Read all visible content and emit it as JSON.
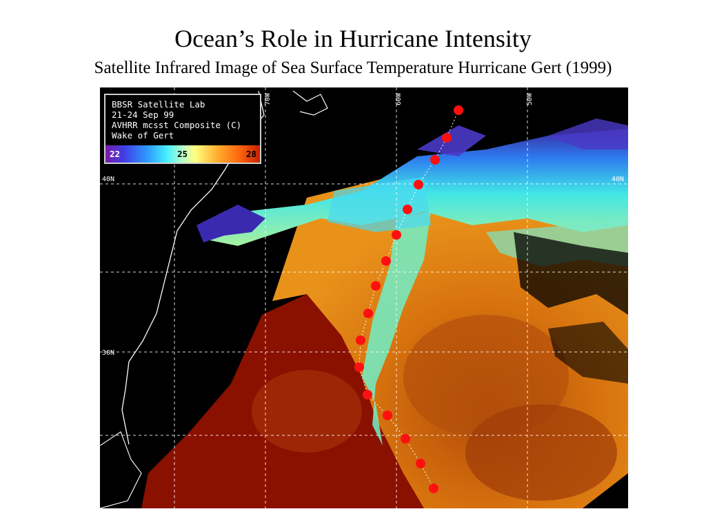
{
  "slide": {
    "title": "Ocean’s Role in Hurricane Intensity",
    "subtitle": "Satellite Infrared Image of Sea Surface Temperature Hurricane Gert (1999)"
  },
  "info_box": {
    "lines": [
      "BBSR Satellite Lab",
      "21-24 Sep 99",
      "AVHRR mcsst Composite (C)",
      "Wake of Gert"
    ]
  },
  "colorbar": {
    "labels": [
      "22",
      "25",
      "28"
    ],
    "label_colors": [
      "#ffffff",
      "#000000",
      "#000000"
    ]
  },
  "grid_labels": {
    "lat": [
      "40N",
      "40N",
      "30N"
    ],
    "lon": [
      "70W",
      "60W",
      "50W"
    ]
  },
  "colors": {
    "track_dot": "#ff1010",
    "gridline": "#ffffff",
    "warm": "#c85a10",
    "hot": "#8a1000",
    "cool": "#40e0e0"
  }
}
